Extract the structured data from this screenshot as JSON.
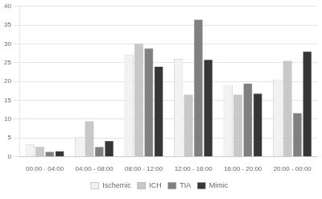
{
  "chart_data": {
    "type": "bar",
    "categories": [
      "00:00 - 04:00",
      "04:00 - 08:00",
      "08:00 - 12:00",
      "12:00 - 16:00",
      "16:00 - 20:00",
      "20:00 - 00:00"
    ],
    "series": [
      {
        "name": "Ischemic",
        "color": "#f2f2f2",
        "values": [
          3.2,
          5.1,
          27.0,
          26.0,
          19.0,
          20.5
        ]
      },
      {
        "name": "ICH",
        "color": "#c8c8c8",
        "values": [
          2.6,
          9.4,
          30.0,
          16.5,
          16.5,
          25.5
        ]
      },
      {
        "name": "TIA",
        "color": "#808080",
        "values": [
          1.3,
          2.6,
          28.8,
          36.5,
          19.5,
          11.6
        ]
      },
      {
        "name": "Mimic",
        "color": "#363636",
        "values": [
          1.5,
          4.2,
          24.0,
          25.8,
          16.8,
          28.0
        ]
      }
    ],
    "ylim": [
      0,
      40
    ],
    "yticks": [
      0,
      5,
      10,
      15,
      20,
      25,
      30,
      35,
      40
    ],
    "grid": true,
    "legend": "bottom"
  }
}
